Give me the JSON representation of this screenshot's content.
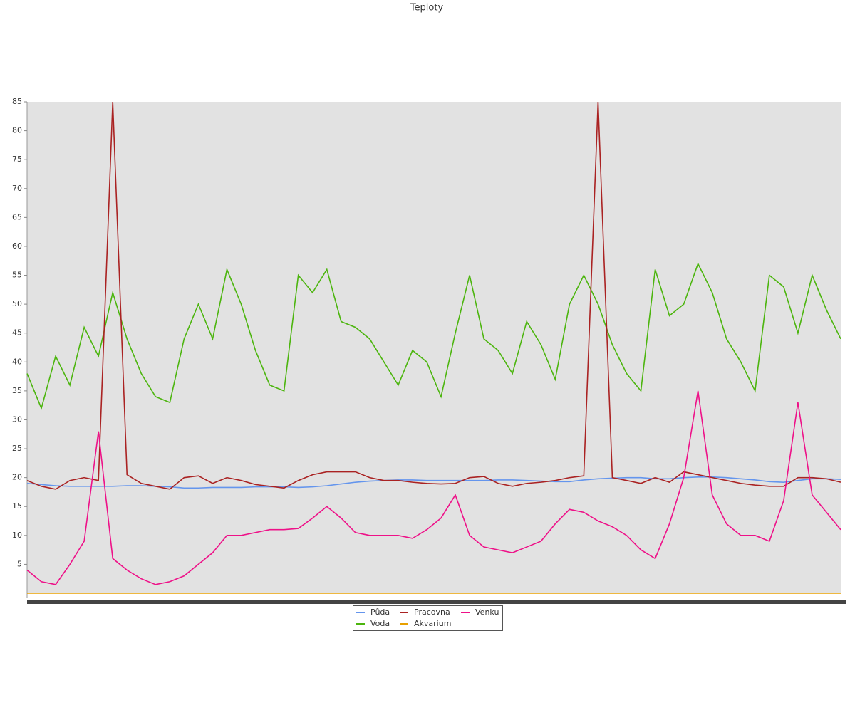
{
  "chart_data": {
    "type": "line",
    "title": "Teploty",
    "ylim": [
      0,
      85
    ],
    "yticks": [
      5,
      10,
      15,
      20,
      25,
      30,
      35,
      40,
      45,
      50,
      55,
      60,
      65,
      70,
      75,
      80,
      85
    ],
    "series": [
      {
        "name": "Půda",
        "color": "#6495ed",
        "values": [
          19,
          18.8,
          18.6,
          18.5,
          18.5,
          18.5,
          18.5,
          18.6,
          18.6,
          18.5,
          18.4,
          18.2,
          18.2,
          18.3,
          18.3,
          18.3,
          18.4,
          18.4,
          18.4,
          18.3,
          18.4,
          18.6,
          18.9,
          19.2,
          19.4,
          19.5,
          19.6,
          19.6,
          19.5,
          19.5,
          19.5,
          19.5,
          19.5,
          19.6,
          19.6,
          19.5,
          19.4,
          19.3,
          19.3,
          19.6,
          19.8,
          19.9,
          20,
          20,
          19.8,
          19.8,
          20,
          20.1,
          20.1,
          20,
          19.8,
          19.6,
          19.3,
          19.2,
          19.5,
          19.8,
          19.8,
          19.7
        ]
      },
      {
        "name": "Voda",
        "color": "#4cb50e",
        "values": [
          38,
          32,
          41,
          36,
          46,
          41,
          52,
          44,
          38,
          34,
          33,
          44,
          50,
          44,
          56,
          50,
          42,
          36,
          35,
          55,
          52,
          56,
          47,
          46,
          44,
          40,
          36,
          42,
          40,
          34,
          45,
          55,
          44,
          42,
          38,
          47,
          43,
          37,
          50,
          55,
          50,
          43,
          38,
          35,
          56,
          48,
          50,
          57,
          52,
          44,
          40,
          35,
          55,
          53,
          45,
          55,
          49,
          44
        ]
      },
      {
        "name": "Pracovna",
        "color": "#aa2222",
        "values": [
          19.5,
          18.5,
          18,
          19.5,
          20,
          19.5,
          85,
          20.5,
          19,
          18.5,
          18,
          20,
          20.3,
          19,
          20,
          19.5,
          18.8,
          18.5,
          18.2,
          19.5,
          20.5,
          21,
          21,
          21,
          20,
          19.5,
          19.5,
          19.2,
          19,
          18.9,
          19,
          20,
          20.2,
          19,
          18.5,
          19,
          19.2,
          19.5,
          20,
          20.3,
          85,
          20,
          19.5,
          19,
          20,
          19.2,
          21,
          20.5,
          20,
          19.5,
          19,
          18.7,
          18.5,
          18.5,
          20,
          20,
          19.8,
          19.2
        ]
      },
      {
        "name": "Akvarium",
        "color": "#e8a000",
        "values": [
          0,
          0,
          0,
          0,
          0,
          0,
          0,
          0,
          0,
          0,
          0,
          0,
          0,
          0,
          0,
          0,
          0,
          0,
          0,
          0,
          0,
          0,
          0,
          0,
          0,
          0,
          0,
          0,
          0,
          0,
          0,
          0,
          0,
          0,
          0,
          0,
          0,
          0,
          0,
          0,
          0,
          0,
          0,
          0,
          0,
          0,
          0,
          0,
          0,
          0,
          0,
          0,
          0,
          0,
          0,
          0,
          0,
          0
        ]
      },
      {
        "name": "Venku",
        "color": "#ee1188",
        "values": [
          4,
          2,
          1.5,
          5,
          9,
          28,
          6,
          4,
          2.5,
          1.5,
          2,
          3,
          5,
          7,
          10,
          10,
          10.5,
          11,
          11,
          11.2,
          13,
          15,
          13,
          10.5,
          10,
          10,
          10,
          9.5,
          11,
          13,
          17,
          10,
          8,
          7.5,
          7,
          8,
          9,
          12,
          14.5,
          14,
          12.5,
          11.5,
          10,
          7.5,
          6,
          12,
          20,
          35,
          17,
          12,
          10,
          10,
          9,
          16,
          33,
          17,
          14,
          11
        ]
      }
    ]
  }
}
